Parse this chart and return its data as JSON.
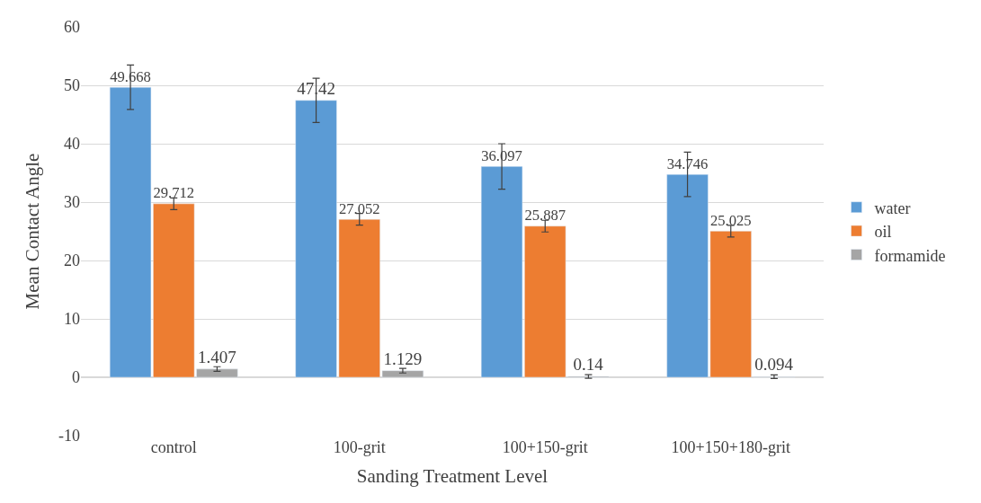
{
  "chart_data": {
    "type": "bar",
    "xlabel": "Sanding Treatment Level",
    "ylabel": "Mean Contact Angle",
    "categories": [
      "control",
      "100-grit",
      "100+150-grit",
      "100+150+180-grit"
    ],
    "series": [
      {
        "name": "water",
        "color": "#5b9bd5",
        "values": [
          49.668,
          47.42,
          36.097,
          34.746
        ],
        "errors": [
          3.8,
          3.8,
          3.9,
          3.8
        ]
      },
      {
        "name": "oil",
        "color": "#ed7d31",
        "values": [
          29.712,
          27.052,
          25.887,
          25.025
        ],
        "errors": [
          1,
          1,
          1,
          1
        ]
      },
      {
        "name": "formamide",
        "color": "#a5a5a5",
        "values": [
          1.407,
          1.129,
          0.14,
          0.094
        ],
        "errors": [
          0.4,
          0.4,
          0.3,
          0.3
        ]
      }
    ],
    "ylim": [
      -10,
      60
    ],
    "yticks": [
      -10,
      0,
      10,
      20,
      30,
      40,
      50,
      60
    ],
    "grid": "y",
    "legend": "right",
    "data_labels": true
  }
}
